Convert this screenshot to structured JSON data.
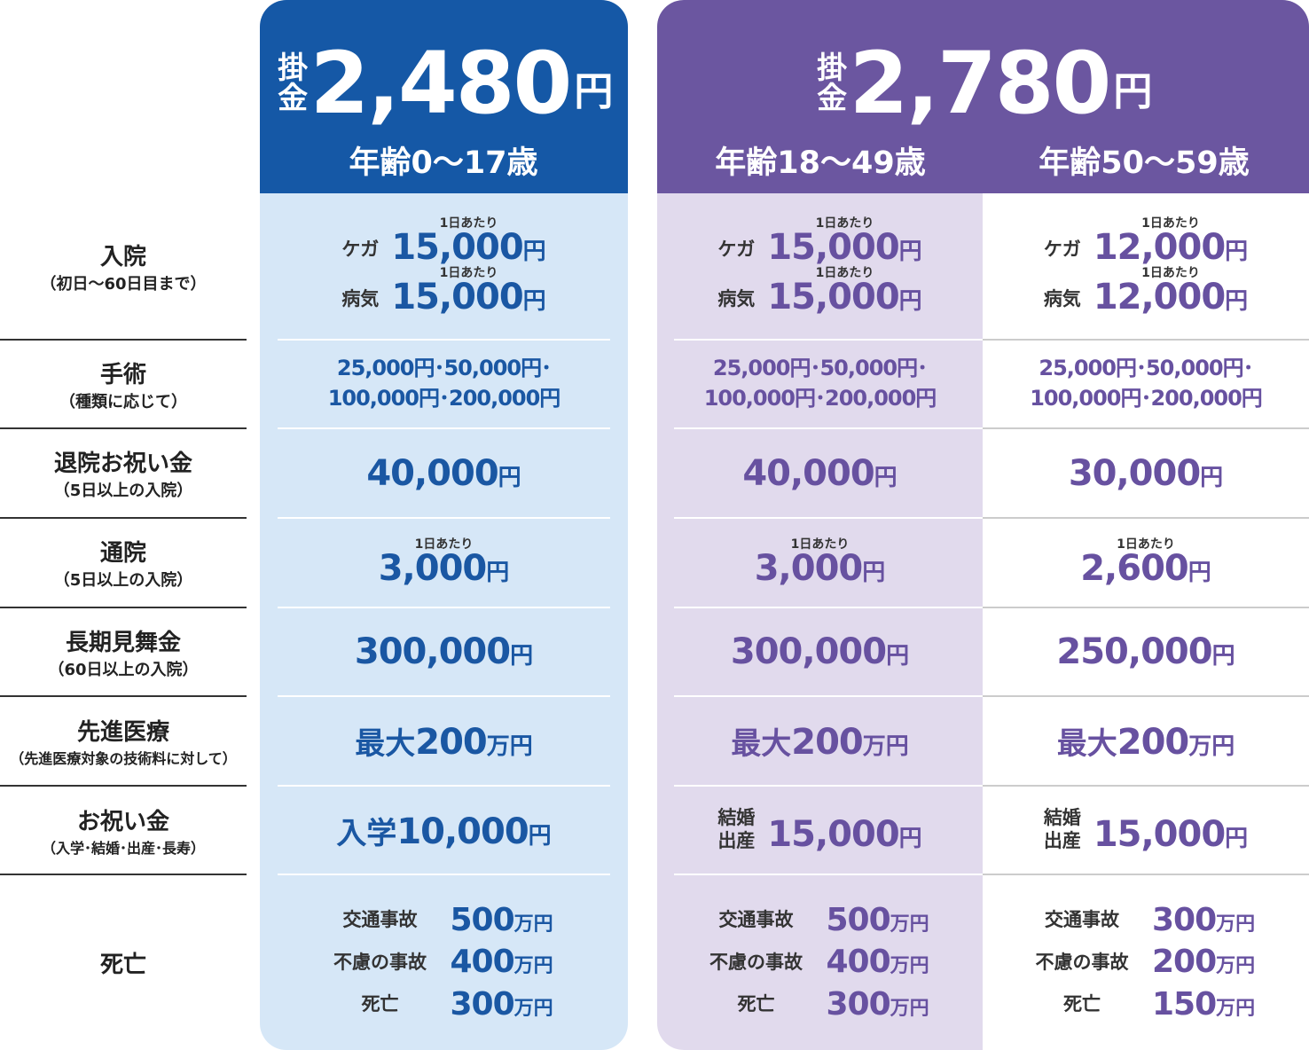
{
  "header": {
    "plans": [
      {
        "premium_label": "掛金",
        "premium": "2,480",
        "premium_unit": "円",
        "ages": [
          "年齢0〜17歳"
        ]
      },
      {
        "premium_label": "掛金",
        "premium": "2,780",
        "premium_unit": "円",
        "ages": [
          "年齢18〜49歳",
          "年齢50〜59歳"
        ]
      }
    ]
  },
  "rows": [
    {
      "label": "入院",
      "sublabel": "（初日〜60日目まで）",
      "cells": [
        [
          {
            "label": "ケガ",
            "note": "1日あたり",
            "amount": "15,000",
            "unit": "円"
          },
          {
            "label": "病気",
            "note": "1日あたり",
            "amount": "15,000",
            "unit": "円"
          }
        ],
        [
          {
            "label": "ケガ",
            "note": "1日あたり",
            "amount": "15,000",
            "unit": "円"
          },
          {
            "label": "病気",
            "note": "1日あたり",
            "amount": "15,000",
            "unit": "円"
          }
        ],
        [
          {
            "label": "ケガ",
            "note": "1日あたり",
            "amount": "12,000",
            "unit": "円"
          },
          {
            "label": "病気",
            "note": "1日あたり",
            "amount": "12,000",
            "unit": "円"
          }
        ]
      ]
    },
    {
      "label": "手術",
      "sublabel": "（種類に応じて）",
      "cells": [
        [
          {
            "text": "25,000円･50,000円･"
          },
          {
            "text": "100,000円･200,000円"
          }
        ],
        [
          {
            "text": "25,000円･50,000円･"
          },
          {
            "text": "100,000円･200,000円"
          }
        ],
        [
          {
            "text": "25,000円･50,000円･"
          },
          {
            "text": "100,000円･200,000円"
          }
        ]
      ]
    },
    {
      "label": "退院お祝い金",
      "sublabel": "（5日以上の入院）",
      "cells": [
        [
          {
            "amount": "40,000",
            "unit": "円"
          }
        ],
        [
          {
            "amount": "40,000",
            "unit": "円"
          }
        ],
        [
          {
            "amount": "30,000",
            "unit": "円"
          }
        ]
      ]
    },
    {
      "label": "通院",
      "sublabel": "（5日以上の入院）",
      "cells": [
        [
          {
            "note": "1日あたり",
            "amount": "3,000",
            "unit": "円"
          }
        ],
        [
          {
            "note": "1日あたり",
            "amount": "3,000",
            "unit": "円"
          }
        ],
        [
          {
            "note": "1日あたり",
            "amount": "2,600",
            "unit": "円"
          }
        ]
      ]
    },
    {
      "label": "長期見舞金",
      "sublabel": "（60日以上の入院）",
      "cells": [
        [
          {
            "amount": "300,000",
            "unit": "円"
          }
        ],
        [
          {
            "amount": "300,000",
            "unit": "円"
          }
        ],
        [
          {
            "amount": "250,000",
            "unit": "円"
          }
        ]
      ]
    },
    {
      "label": "先進医療",
      "sublabel": "（先進医療対象の技術料に対して）",
      "cells": [
        [
          {
            "prefix": "最大",
            "amount": "200",
            "unit": "万円"
          }
        ],
        [
          {
            "prefix": "最大",
            "amount": "200",
            "unit": "万円"
          }
        ],
        [
          {
            "prefix": "最大",
            "amount": "200",
            "unit": "万円"
          }
        ]
      ]
    },
    {
      "label": "お祝い金",
      "sublabel": "（入学･結婚･出産･長寿）",
      "cells": [
        [
          {
            "prefix": "入学",
            "amount": "10,000",
            "unit": "円"
          }
        ],
        [
          {
            "label_lines": [
              "結婚",
              "出産"
            ],
            "amount": "15,000",
            "unit": "円"
          }
        ],
        [
          {
            "label_lines": [
              "結婚",
              "出産"
            ],
            "amount": "15,000",
            "unit": "円"
          }
        ]
      ]
    },
    {
      "label": "死亡",
      "cells": [
        [
          {
            "label": "交通事故",
            "amount": "500",
            "unit": "万円"
          },
          {
            "label": "不慮の事故",
            "amount": "400",
            "unit": "万円"
          },
          {
            "label": "死亡",
            "amount": "300",
            "unit": "万円"
          }
        ],
        [
          {
            "label": "交通事故",
            "amount": "500",
            "unit": "万円"
          },
          {
            "label": "不慮の事故",
            "amount": "400",
            "unit": "万円"
          },
          {
            "label": "死亡",
            "amount": "300",
            "unit": "万円"
          }
        ],
        [
          {
            "label": "交通事故",
            "amount": "300",
            "unit": "万円"
          },
          {
            "label": "不慮の事故",
            "amount": "200",
            "unit": "万円"
          },
          {
            "label": "死亡",
            "amount": "150",
            "unit": "万円"
          }
        ]
      ]
    }
  ]
}
